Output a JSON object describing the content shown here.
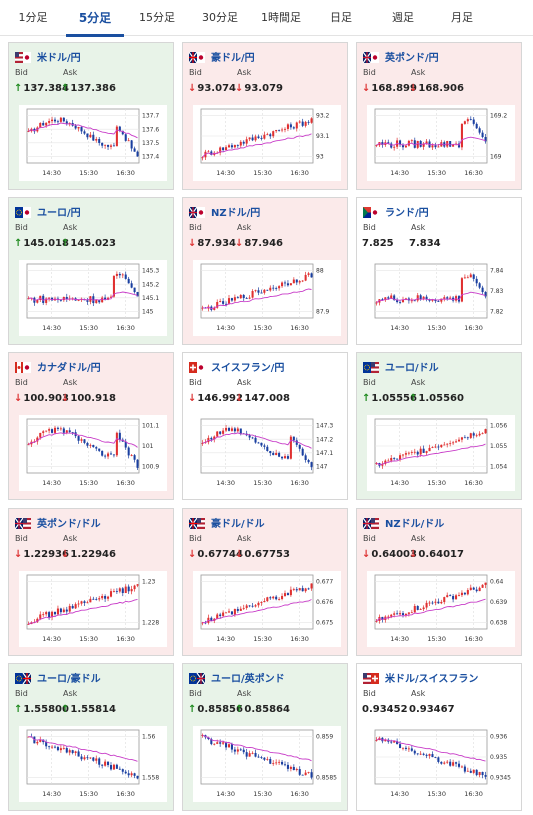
{
  "tabs": [
    {
      "label": "1分足",
      "active": false
    },
    {
      "label": "5分足",
      "active": true
    },
    {
      "label": "15分足",
      "active": false
    },
    {
      "label": "30分足",
      "active": false
    },
    {
      "label": "1時間足",
      "active": false
    },
    {
      "label": "日足",
      "active": false
    },
    {
      "label": "週足",
      "active": false
    },
    {
      "label": "月足",
      "active": false
    }
  ],
  "labels": {
    "bid": "Bid",
    "ask": "Ask"
  },
  "colors": {
    "accent": "#1a4fa0",
    "up_arrow": "#1e8a1e",
    "down_arrow": "#dd3333",
    "up_bg": "#e8f3e8",
    "down_bg": "#fbeaea",
    "candle_up": "#e03030",
    "candle_down": "#1a3fa0",
    "ma": "#c83cc8"
  },
  "cards": [
    {
      "pair": "米ドル/円",
      "flag": "us-jp-flag",
      "trend": "up",
      "bid_dir": "up",
      "ask_dir": "up",
      "bid": "137.384",
      "ask": "137.386",
      "chart_data": {
        "type": "candlestick",
        "x_ticks": [
          "14:30",
          "15:30",
          "16:30"
        ],
        "y_ticks": [
          "137.7",
          "137.6",
          "137.5",
          "137.4"
        ],
        "shape": "bump-down"
      }
    },
    {
      "pair": "豪ドル/円",
      "flag": "au-jp-flag",
      "trend": "down",
      "bid_dir": "down",
      "ask_dir": "down",
      "bid": "93.074",
      "ask": "93.079",
      "chart_data": {
        "type": "candlestick",
        "x_ticks": [
          "14:30",
          "15:30",
          "16:30"
        ],
        "y_ticks": [
          "93.2",
          "93.1",
          "93"
        ],
        "shape": "rise"
      }
    },
    {
      "pair": "英ポンド/円",
      "flag": "gb-jp-flag",
      "trend": "down",
      "bid_dir": "down",
      "ask_dir": "down",
      "bid": "168.899",
      "ask": "168.906",
      "chart_data": {
        "type": "candlestick",
        "x_ticks": [
          "14:30",
          "15:30",
          "16:30"
        ],
        "y_ticks": [
          "169.2",
          "169"
        ],
        "shape": "flat-spike"
      }
    },
    {
      "pair": "ユーロ/円",
      "flag": "eu-jp-flag",
      "trend": "up",
      "bid_dir": "up",
      "ask_dir": "up",
      "bid": "145.018",
      "ask": "145.023",
      "chart_data": {
        "type": "candlestick",
        "x_ticks": [
          "14:30",
          "15:30",
          "16:30"
        ],
        "y_ticks": [
          "145.3",
          "145.2",
          "145.1",
          "145"
        ],
        "shape": "flat-spike"
      }
    },
    {
      "pair": "NZドル/円",
      "flag": "nz-jp-flag",
      "trend": "down",
      "bid_dir": "down",
      "ask_dir": "down",
      "bid": "87.934",
      "ask": "87.946",
      "chart_data": {
        "type": "candlestick",
        "x_ticks": [
          "14:30",
          "15:30",
          "16:30"
        ],
        "y_ticks": [
          "88",
          "87.9"
        ],
        "shape": "rise"
      }
    },
    {
      "pair": "ランド/円",
      "flag": "za-jp-flag",
      "trend": "flat",
      "bid_dir": "none",
      "ask_dir": "none",
      "bid": "7.825",
      "ask": "7.834",
      "chart_data": {
        "type": "candlestick",
        "x_ticks": [
          "14:30",
          "15:30",
          "16:30"
        ],
        "y_ticks": [
          "7.84",
          "7.83",
          "7.82"
        ],
        "shape": "flat-spike"
      }
    },
    {
      "pair": "カナダドル/円",
      "flag": "ca-jp-flag",
      "trend": "down",
      "bid_dir": "down",
      "ask_dir": "down",
      "bid": "100.903",
      "ask": "100.918",
      "chart_data": {
        "type": "candlestick",
        "x_ticks": [
          "14:30",
          "15:30",
          "16:30"
        ],
        "y_ticks": [
          "101.1",
          "101",
          "100.9"
        ],
        "shape": "bump-down"
      }
    },
    {
      "pair": "スイスフラン/円",
      "flag": "ch-jp-flag",
      "trend": "flat",
      "bid_dir": "down",
      "ask_dir": "down",
      "bid": "146.992",
      "ask": "147.008",
      "chart_data": {
        "type": "candlestick",
        "x_ticks": [
          "14:30",
          "15:30",
          "16:30"
        ],
        "y_ticks": [
          "147.3",
          "147.2",
          "147.1",
          "147"
        ],
        "shape": "bump-down"
      }
    },
    {
      "pair": "ユーロ/ドル",
      "flag": "eu-us-flag",
      "trend": "up",
      "bid_dir": "up",
      "ask_dir": "up",
      "bid": "1.05556",
      "ask": "1.05560",
      "chart_data": {
        "type": "candlestick",
        "x_ticks": [
          "14:30",
          "15:30",
          "16:30"
        ],
        "y_ticks": [
          "1.056",
          "1.055",
          "1.054"
        ],
        "shape": "rise"
      }
    },
    {
      "pair": "英ポンド/ドル",
      "flag": "gb-us-flag",
      "trend": "down",
      "bid_dir": "down",
      "ask_dir": "down",
      "bid": "1.22936",
      "ask": "1.22946",
      "chart_data": {
        "type": "candlestick",
        "x_ticks": [
          "14:30",
          "15:30",
          "16:30"
        ],
        "y_ticks": [
          "1.23",
          "1.228"
        ],
        "shape": "rise"
      }
    },
    {
      "pair": "豪ドル/ドル",
      "flag": "au-us-flag",
      "trend": "down",
      "bid_dir": "down",
      "ask_dir": "down",
      "bid": "0.67744",
      "ask": "0.67753",
      "chart_data": {
        "type": "candlestick",
        "x_ticks": [
          "14:30",
          "15:30",
          "16:30"
        ],
        "y_ticks": [
          "0.677",
          "0.676",
          "0.675"
        ],
        "shape": "rise"
      }
    },
    {
      "pair": "NZドル/ドル",
      "flag": "nz-us-flag",
      "trend": "down",
      "bid_dir": "down",
      "ask_dir": "down",
      "bid": "0.64003",
      "ask": "0.64017",
      "chart_data": {
        "type": "candlestick",
        "x_ticks": [
          "14:30",
          "15:30",
          "16:30"
        ],
        "y_ticks": [
          "0.64",
          "0.639",
          "0.638"
        ],
        "shape": "rise"
      }
    },
    {
      "pair": "ユーロ/豪ドル",
      "flag": "eu-au-flag",
      "trend": "up",
      "bid_dir": "up",
      "ask_dir": "up",
      "bid": "1.55800",
      "ask": "1.55814",
      "chart_data": {
        "type": "candlestick",
        "x_ticks": [
          "14:30",
          "15:30",
          "16:30"
        ],
        "y_ticks": [
          "1.56",
          "1.558"
        ],
        "shape": "fall"
      }
    },
    {
      "pair": "ユーロ/英ポンド",
      "flag": "eu-gb-flag",
      "trend": "up",
      "bid_dir": "up",
      "ask_dir": "up",
      "bid": "0.85856",
      "ask": "0.85864",
      "chart_data": {
        "type": "candlestick",
        "x_ticks": [
          "14:30",
          "15:30",
          "16:30"
        ],
        "y_ticks": [
          "0.859",
          "0.8585"
        ],
        "shape": "fall"
      }
    },
    {
      "pair": "米ドル/スイスフラン",
      "flag": "us-ch-flag",
      "trend": "flat",
      "bid_dir": "none",
      "ask_dir": "none",
      "bid": "0.93452",
      "ask": "0.93467",
      "chart_data": {
        "type": "candlestick",
        "x_ticks": [
          "14:30",
          "15:30",
          "16:30"
        ],
        "y_ticks": [
          "0.936",
          "0.935",
          "0.9345"
        ],
        "shape": "fall"
      }
    }
  ]
}
